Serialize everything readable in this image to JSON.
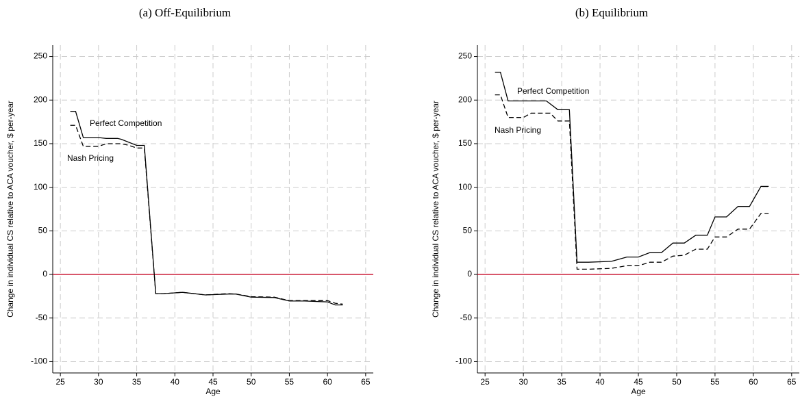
{
  "chart_data": [
    {
      "type": "line",
      "title": "(a) Off-Equilibrium",
      "xlabel": "Age",
      "ylabel": "Change in individual CS relative to ACA voucher, $ per-year",
      "xlim": [
        24,
        66
      ],
      "xticks": [
        25,
        30,
        35,
        40,
        45,
        50,
        55,
        60,
        65
      ],
      "ylim": [
        -113,
        263
      ],
      "yticks": [
        -100,
        -50,
        0,
        50,
        100,
        150,
        200,
        250
      ],
      "grid": true,
      "hline": 0,
      "hline_color": "#c8102e",
      "series": [
        {
          "name": "Perfect Competition",
          "color": "#000000",
          "dash": "solid",
          "x": [
            26.3,
            27,
            28,
            30,
            31,
            32.5,
            33,
            35,
            36,
            37.5,
            38.5,
            41,
            44,
            47,
            48,
            50,
            53,
            55,
            57,
            60,
            61,
            62
          ],
          "values": [
            187,
            187,
            157,
            157,
            156,
            156,
            155,
            148,
            148,
            -22,
            -22,
            -20.5,
            -23.5,
            -22.5,
            -22.5,
            -26,
            -26.5,
            -30.5,
            -30.5,
            -31.5,
            -35,
            -35
          ]
        },
        {
          "name": "Nash Pricing",
          "color": "#000000",
          "dash": "dashed",
          "x": [
            26.3,
            27,
            28,
            30,
            31,
            33,
            34,
            35,
            36,
            37.5,
            38.5,
            41,
            44,
            47,
            48,
            50,
            53,
            55,
            57,
            60,
            61,
            62
          ],
          "values": [
            171,
            171,
            147,
            147,
            150,
            150,
            148,
            145,
            145,
            -22,
            -22,
            -20.5,
            -23.5,
            -22,
            -22.5,
            -25.5,
            -26,
            -30,
            -30,
            -30,
            -33,
            -34
          ]
        }
      ]
    },
    {
      "type": "line",
      "title": "(b) Equilibrium",
      "xlabel": "Age",
      "ylabel": "Change in individual CS relative to ACA voucher, $ per-year",
      "xlim": [
        24,
        66
      ],
      "xticks": [
        25,
        30,
        35,
        40,
        45,
        50,
        55,
        60,
        65
      ],
      "ylim": [
        -113,
        263
      ],
      "yticks": [
        -100,
        -50,
        0,
        50,
        100,
        150,
        200,
        250
      ],
      "grid": true,
      "hline": 0,
      "hline_color": "#c8102e",
      "series": [
        {
          "name": "Perfect Competition",
          "color": "#000000",
          "dash": "solid",
          "x": [
            26.3,
            27,
            28,
            30,
            31,
            32.5,
            33,
            34.5,
            36,
            37,
            38.5,
            41.5,
            43.5,
            45,
            46.5,
            48,
            49.5,
            51,
            52.5,
            54,
            55,
            56.5,
            58,
            59.5,
            61,
            62
          ],
          "values": [
            232,
            232,
            199,
            199,
            199,
            199,
            199,
            189,
            189,
            14,
            14,
            15,
            20,
            20,
            25,
            25,
            36,
            36,
            45,
            45,
            66,
            66,
            78,
            78,
            101,
            101
          ]
        },
        {
          "name": "Nash Pricing",
          "color": "#000000",
          "dash": "dashed",
          "x": [
            26.3,
            27,
            28,
            30,
            31,
            32.5,
            33.5,
            34.5,
            36,
            37,
            38.5,
            41.5,
            43.5,
            45,
            46.5,
            48,
            49.5,
            51,
            52.5,
            54,
            55,
            56.5,
            58,
            59.5,
            61,
            62
          ],
          "values": [
            206,
            206,
            180,
            180,
            185,
            185,
            185,
            176,
            176,
            6,
            6,
            7,
            10,
            10,
            14,
            14,
            21,
            22,
            29,
            29,
            43,
            43,
            52,
            52,
            70,
            70
          ]
        }
      ]
    }
  ]
}
